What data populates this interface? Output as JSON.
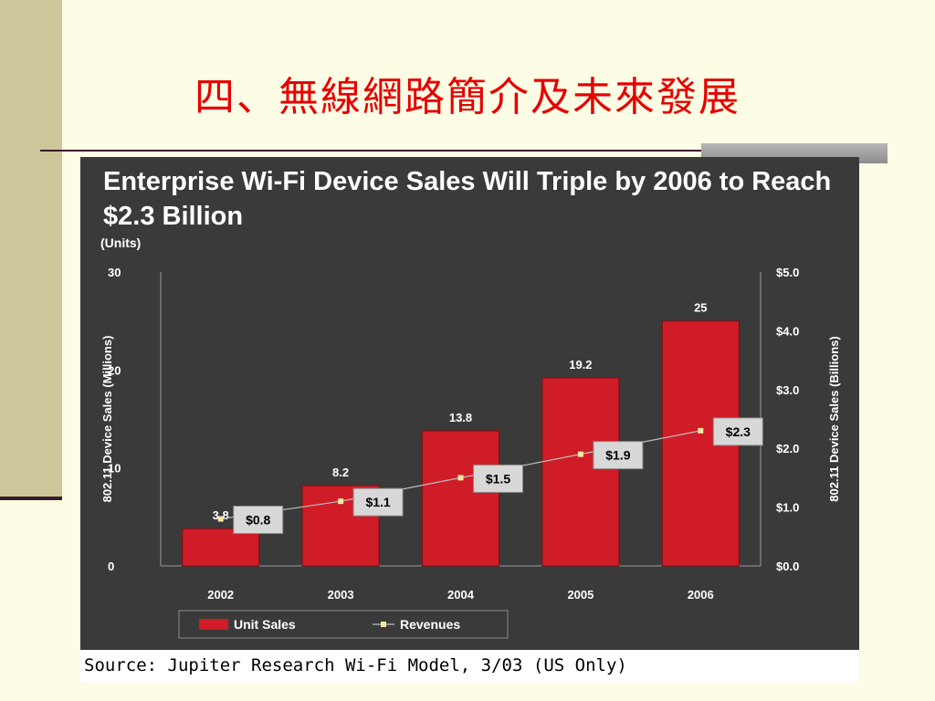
{
  "slide": {
    "title": "四、無線網路簡介及未來發展"
  },
  "chart_data": {
    "type": "bar",
    "title": "Enterprise Wi-Fi Device Sales Will Triple by 2006 to Reach $2.3 Billion",
    "units_label": "(Units)",
    "categories": [
      "2002",
      "2003",
      "2004",
      "2005",
      "2006"
    ],
    "series": [
      {
        "name": "Unit Sales",
        "type": "bar",
        "axis": "left",
        "values": [
          3.8,
          8.2,
          13.8,
          19.2,
          25
        ],
        "value_labels": [
          "3.8",
          "8.2",
          "13.8",
          "19.2",
          "25"
        ],
        "color": "#d01c26"
      },
      {
        "name": "Revenues",
        "type": "line",
        "axis": "right",
        "values": [
          0.8,
          1.1,
          1.5,
          1.9,
          2.3
        ],
        "value_labels": [
          "$0.8",
          "$1.1",
          "$1.5",
          "$1.9",
          "$2.3"
        ],
        "color": "#f2e8a0"
      }
    ],
    "left_axis": {
      "label": "802.11 Device Sales (Millions)",
      "ylim": [
        0,
        30
      ],
      "ticks": [
        0,
        10,
        20,
        30
      ],
      "tick_labels": [
        "0",
        "10",
        "20",
        "30"
      ]
    },
    "right_axis": {
      "label": "802.11 Device Sales (Billions)",
      "ylim": [
        0,
        5
      ],
      "ticks": [
        0,
        1,
        2,
        3,
        4,
        5
      ],
      "tick_labels": [
        "$0.0",
        "$1.0",
        "$2.0",
        "$3.0",
        "$4.0",
        "$5.0"
      ]
    },
    "legend": {
      "placement": "bottom-left",
      "items": [
        "Unit Sales",
        "Revenues"
      ]
    },
    "grid": false
  },
  "source_text": "Source: Jupiter Research Wi-Fi Model, 3/03 (US Only)"
}
